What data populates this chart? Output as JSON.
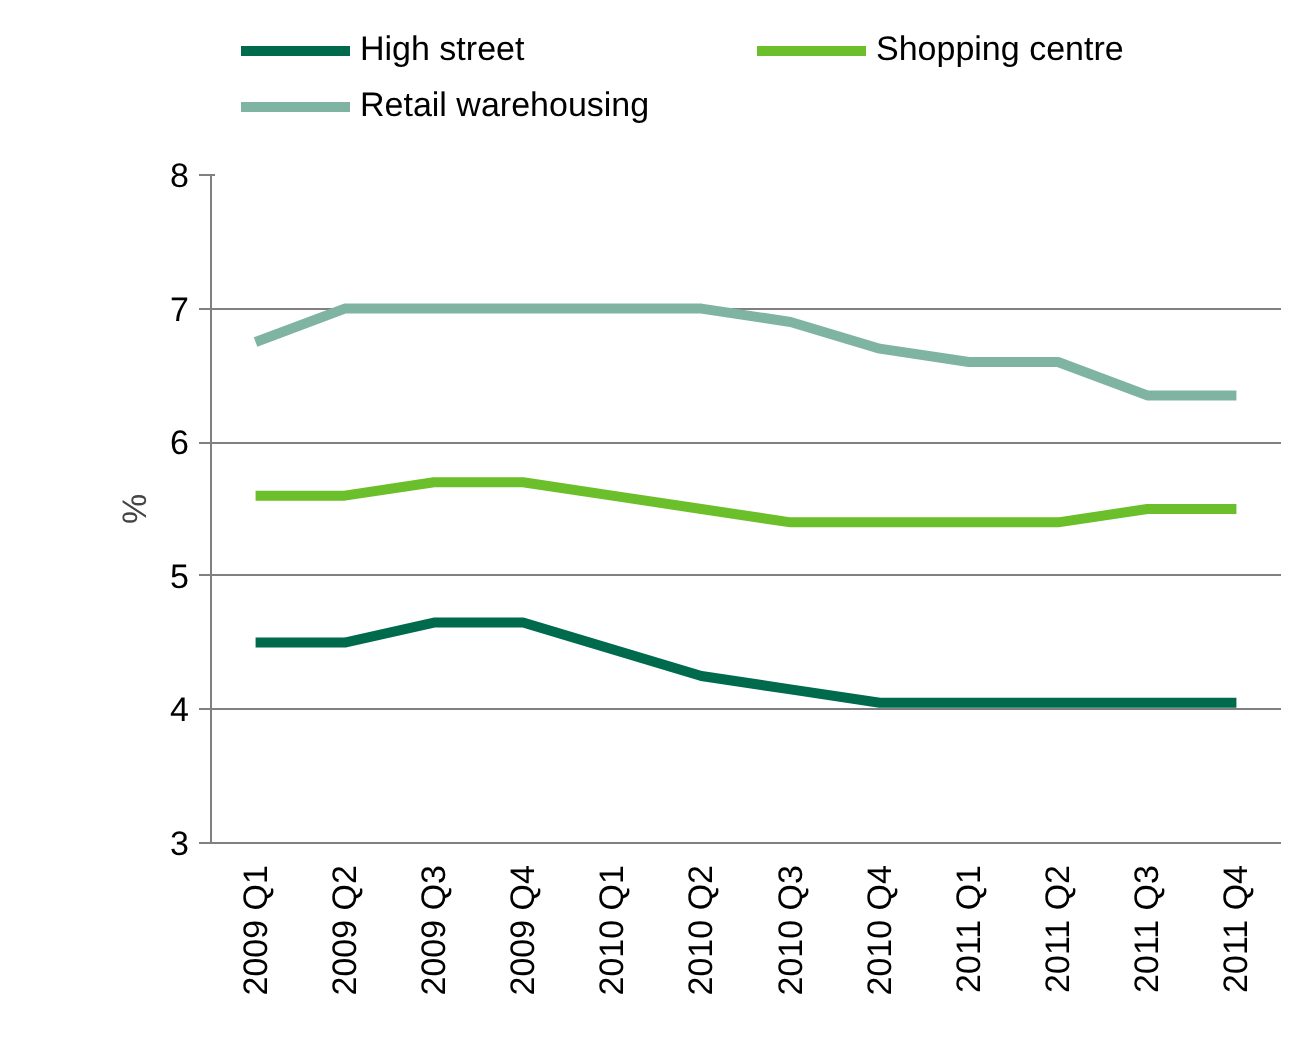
{
  "chart_data": {
    "type": "line",
    "ylabel": "%",
    "categories": [
      "2009 Q1",
      "2009 Q2",
      "2009 Q3",
      "2009 Q4",
      "2010 Q1",
      "2010 Q2",
      "2010 Q3",
      "2010 Q4",
      "2011 Q1",
      "2011 Q2",
      "2011 Q3",
      "2011 Q4"
    ],
    "series": [
      {
        "name": "High street",
        "color": "#006a4d",
        "values": [
          4.5,
          4.5,
          4.65,
          4.65,
          4.45,
          4.25,
          4.15,
          4.05,
          4.05,
          4.05,
          4.05,
          4.05
        ]
      },
      {
        "name": "Shopping centre",
        "color": "#6abf2a",
        "values": [
          5.6,
          5.6,
          5.7,
          5.7,
          5.6,
          5.5,
          5.4,
          5.4,
          5.4,
          5.4,
          5.5,
          5.5
        ]
      },
      {
        "name": "Retail warehousing",
        "color": "#7fb3a2",
        "values": [
          6.75,
          7,
          7,
          7,
          7,
          7,
          6.9,
          6.7,
          6.6,
          6.6,
          6.35,
          6.35
        ]
      }
    ],
    "ylim": [
      3,
      8
    ],
    "yticks": [
      3,
      4,
      5,
      6,
      7,
      8
    ],
    "grid": "y",
    "legend": "top",
    "marker": "none",
    "line_style": "solid"
  }
}
